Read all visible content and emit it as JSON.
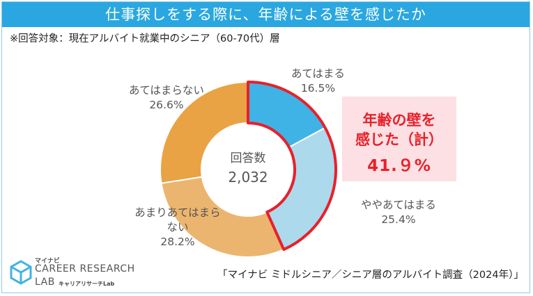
{
  "header": {
    "title": "仕事探しをする際に、年齢による壁を感じたか"
  },
  "subtitle": "※回答対象：現在アルバイト就業中のシニア（60-70代）層",
  "chart_data": {
    "type": "pie",
    "title": "仕事探しをする際に、年齢による壁を感じたか",
    "center_label": "回答数",
    "total": "2,032",
    "slices": [
      {
        "label": "あてはまる",
        "value": 16.5,
        "display": "16.5%",
        "color": "#3fb3e6"
      },
      {
        "label": "ややあてはまる",
        "value": 25.4,
        "display": "25.4%",
        "color": "#acd9ec"
      },
      {
        "label": "あまりあてはまらない",
        "value": 28.2,
        "display": "28.2%",
        "color": "#ecb56f"
      },
      {
        "label": "あてはまらない",
        "value": 26.6,
        "display": "26.6%",
        "color": "#e9a244"
      }
    ],
    "highlight": {
      "line1": "年齢の壁を",
      "line2": "感じた（計）",
      "value": "41.9%",
      "border_color": "#e8202a"
    }
  },
  "labels": {
    "s0_name": "あてはまる",
    "s1_name": "ややあてはまる",
    "s2_name_a": "あまりあてはまら",
    "s2_name_b": "ない",
    "s3_name": "あてはまらない"
  },
  "percents": {
    "s0": "16.5%",
    "s1": "25.4%",
    "s2": "28.2%",
    "s3": "26.6%"
  },
  "callout": {
    "line1": "年齢の壁を",
    "line2": "感じた（計）",
    "value": "41.９%"
  },
  "source": "「マイナビ ミドルシニア／シニア層のアルバイト調査（2024年）」",
  "logo": {
    "brand": "マイナビ",
    "line1": "CAREER RESEARCH",
    "line2": "LAB",
    "line3": "キャリアリサーチLab"
  }
}
